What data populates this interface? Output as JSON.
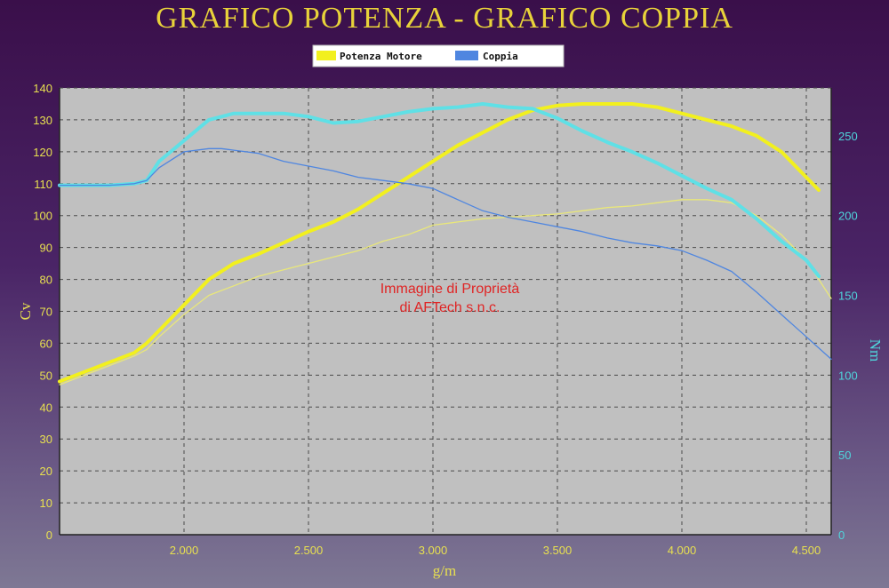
{
  "chart_data": {
    "type": "line",
    "title": "GRAFICO POTENZA - GRAFICO COPPIA",
    "xlabel": "g/m",
    "ylabel_left": "Cv",
    "ylabel_right": "Nm",
    "xlim": [
      1500,
      4600
    ],
    "ylim_left": [
      0,
      140
    ],
    "ylim_right": [
      0,
      280
    ],
    "x_ticks": [
      2000,
      2500,
      3000,
      3500,
      4000,
      4500
    ],
    "x_tick_labels": [
      "2.000",
      "2.500",
      "3.000",
      "3.500",
      "4.000",
      "4.500"
    ],
    "y_left_ticks": [
      0,
      10,
      20,
      30,
      40,
      50,
      60,
      70,
      80,
      90,
      100,
      110,
      120,
      130,
      140
    ],
    "y_right_ticks": [
      0,
      50,
      100,
      150,
      200,
      250
    ],
    "grid": true,
    "legend": {
      "position": "top-center",
      "entries": [
        {
          "label": "Potenza Motore",
          "color": "#f2f01e"
        },
        {
          "label": "Coppia",
          "color": "#4f86e0"
        }
      ]
    },
    "watermark": [
      "Immagine di Proprietà",
      "di AFTech s.n.c."
    ],
    "series": [
      {
        "name": "Potenza Motore",
        "axis": "left",
        "color": "#f2f01e",
        "width": 4,
        "x": [
          1500,
          1600,
          1700,
          1800,
          1850,
          1900,
          2000,
          2100,
          2200,
          2300,
          2400,
          2500,
          2600,
          2700,
          2800,
          2900,
          3000,
          3100,
          3200,
          3300,
          3400,
          3500,
          3600,
          3700,
          3800,
          3900,
          4000,
          4100,
          4200,
          4300,
          4400,
          4500,
          4550
        ],
        "y": [
          48,
          51,
          54,
          57,
          60,
          64,
          72,
          80,
          85,
          88,
          91.5,
          95,
          98,
          102,
          107,
          112,
          117,
          122,
          126,
          130,
          133,
          134.5,
          135,
          135,
          135,
          134,
          132,
          130,
          128,
          125,
          120,
          112,
          108
        ]
      },
      {
        "name": "",
        "axis": "left",
        "color": "#e9e77a",
        "width": 1.3,
        "x": [
          1500,
          1600,
          1700,
          1800,
          1850,
          1900,
          2000,
          2100,
          2200,
          2300,
          2400,
          2500,
          2600,
          2700,
          2800,
          2900,
          3000,
          3100,
          3200,
          3300,
          3400,
          3500,
          3600,
          3700,
          3800,
          3900,
          4000,
          4100,
          4200,
          4300,
          4400,
          4500,
          4600
        ],
        "y": [
          47,
          50,
          53,
          56,
          58,
          62,
          69,
          75,
          78,
          81,
          83,
          85,
          87,
          89,
          92,
          94,
          97,
          98,
          99,
          99.5,
          100,
          100.5,
          101.5,
          102.5,
          103,
          104,
          105,
          105,
          104,
          100,
          94,
          86,
          74
        ]
      },
      {
        "name": "Coppia",
        "axis": "right",
        "color": "#5fe0e6",
        "width": 4,
        "x": [
          1500,
          1600,
          1700,
          1800,
          1850,
          1900,
          2000,
          2100,
          2200,
          2300,
          2400,
          2500,
          2600,
          2700,
          2800,
          2900,
          3000,
          3100,
          3200,
          3300,
          3400,
          3500,
          3600,
          3700,
          3800,
          3900,
          4000,
          4100,
          4200,
          4300,
          4400,
          4500,
          4550
        ],
        "y": [
          219,
          219,
          219,
          220,
          222,
          234,
          247,
          260,
          264,
          264,
          264,
          262,
          258,
          259,
          262,
          265,
          267,
          268,
          270,
          268,
          267,
          261,
          253,
          246,
          240,
          233,
          225,
          217,
          210,
          198,
          184,
          172,
          162
        ]
      },
      {
        "name": "",
        "axis": "right",
        "color": "#4f86e0",
        "width": 1.3,
        "x": [
          1500,
          1600,
          1700,
          1800,
          1850,
          1900,
          2000,
          2100,
          2150,
          2200,
          2300,
          2400,
          2500,
          2600,
          2700,
          2800,
          2900,
          3000,
          3100,
          3200,
          3300,
          3400,
          3500,
          3600,
          3700,
          3800,
          3900,
          4000,
          4100,
          4200,
          4300,
          4400,
          4500,
          4600
        ],
        "y": [
          219,
          219,
          219,
          220,
          222,
          230,
          240,
          242,
          242,
          241,
          239,
          234,
          231,
          228,
          224,
          222,
          220,
          217,
          210,
          203,
          199,
          196,
          193,
          190,
          186,
          183,
          181,
          178,
          172,
          165,
          152,
          138,
          124,
          110
        ]
      }
    ]
  }
}
